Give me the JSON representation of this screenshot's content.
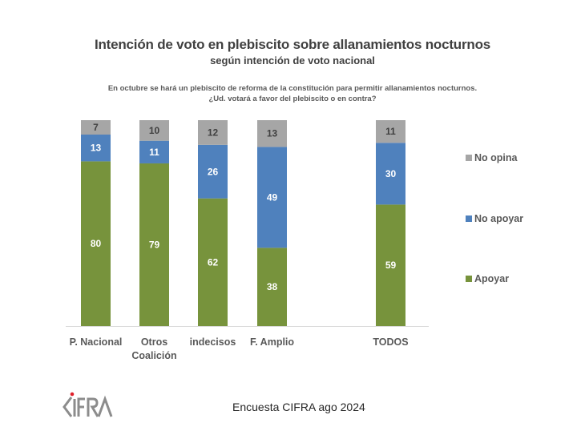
{
  "chart_data": {
    "type": "bar",
    "stacked": true,
    "title": "Intención de voto en plebiscito sobre allanamientos nocturnos",
    "subtitle": "según intención de voto nacional",
    "question": [
      "En octubre se hará un plebiscito de reforma de la constitución para permitir allanamientos nocturnos.",
      "¿Ud. votará a favor del plebiscito o en contra?"
    ],
    "categories": [
      [
        "P. Nacional"
      ],
      [
        "Otros",
        "Coalición"
      ],
      [
        "indecisos"
      ],
      [
        "F. Amplio"
      ],
      [
        "TODOS"
      ]
    ],
    "series": [
      {
        "name": "Apoyar",
        "color": "#77933C",
        "values": [
          80,
          79,
          62,
          38,
          59
        ]
      },
      {
        "name": "No apoyar",
        "color": "#4F81BD",
        "values": [
          13,
          11,
          26,
          49,
          30
        ]
      },
      {
        "name": "No opina",
        "color": "#A6A6A6",
        "values": [
          7,
          10,
          12,
          13,
          11
        ]
      }
    ],
    "legend": [
      "No opina",
      "No apoyar",
      "Apoyar"
    ],
    "legend_position": "right",
    "ylim": [
      0,
      100
    ],
    "grid": false,
    "xlabel": "",
    "ylabel": ""
  },
  "footer": {
    "source": "Encuesta CIFRA ago 2024",
    "logo_text": "CIFRA"
  }
}
